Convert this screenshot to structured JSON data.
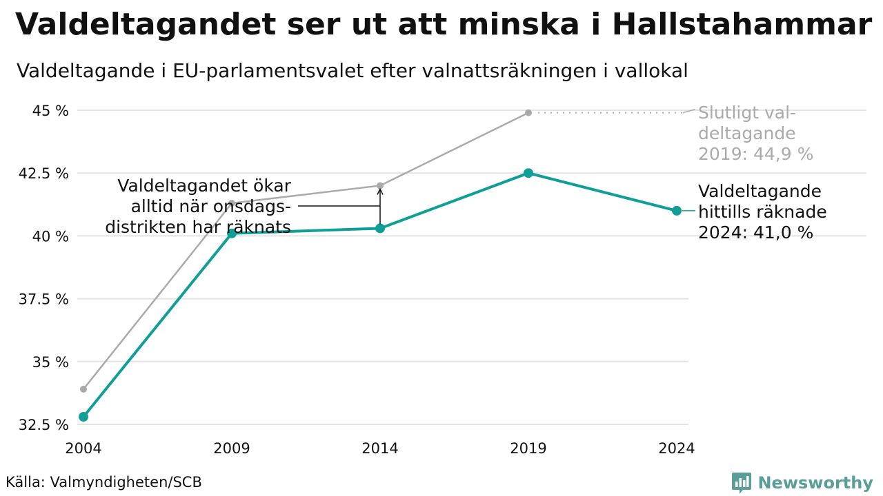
{
  "title": "Valdeltagandet ser ut att minska i Hallstahammar",
  "subtitle": "Valdeltagande i EU-parlamentsvalet efter valnattsräkningen i vallokal",
  "source": "Källa: Valmyndigheten/SCB",
  "brand": {
    "name": "Newsworthy",
    "icon": "bar-chart-bubble-icon",
    "color": "#5a9e98"
  },
  "chart_data": {
    "type": "line",
    "x": [
      "2004",
      "2009",
      "2014",
      "2019",
      "2024"
    ],
    "ylim": [
      32.5,
      45
    ],
    "yticks": [
      32.5,
      35,
      37.5,
      40,
      42.5,
      45
    ],
    "ytick_labels": [
      "32.5 %",
      "35 %",
      "37.5 %",
      "40 %",
      "42.5 %",
      "45 %"
    ],
    "xlabel": "",
    "ylabel": "",
    "grid": true,
    "series": [
      {
        "color": "#aaaaaa",
        "values": [
          33.9,
          41.3,
          42.0,
          44.9,
          null
        ]
      },
      {
        "color": "#0f9f96",
        "values": [
          32.8,
          40.1,
          40.3,
          42.5,
          41.0
        ]
      }
    ],
    "annotations": {
      "final_label": [
        "Slutligt val-",
        "deltagande",
        "2019: 44,9 %"
      ],
      "counted_label": [
        "Valdeltagande",
        "hittills räknade",
        "2024: 41,0 %"
      ],
      "note_label": [
        "Valdeltagandet ökar",
        "alltid när onsdags-",
        "distrikten har räknats"
      ]
    }
  }
}
